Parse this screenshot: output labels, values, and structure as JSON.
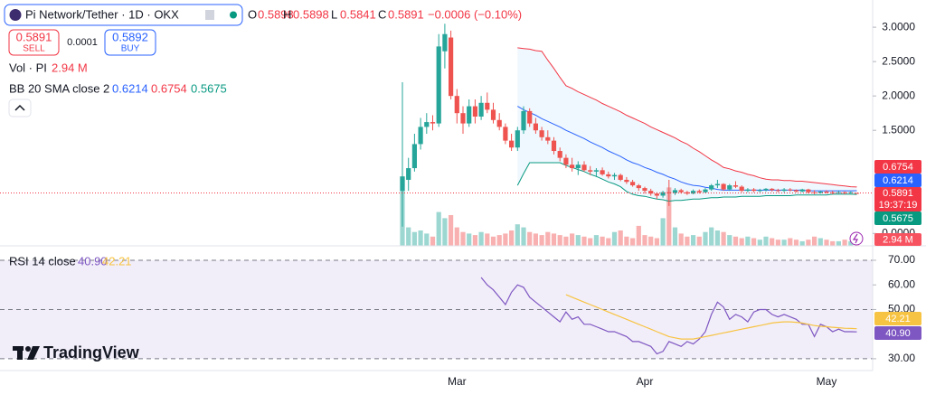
{
  "header": {
    "symbol": "Pi Network/Tether · 1D · OKX",
    "ohlc": [
      {
        "key": "O",
        "value": "0.5898"
      },
      {
        "key": "H",
        "value": "0.5898"
      },
      {
        "key": "L",
        "value": "0.5841"
      },
      {
        "key": "C",
        "value": "0.5891"
      }
    ],
    "change": "−0.0006 (−0.10%)",
    "sell": {
      "price": "0.5891",
      "label": "SELL"
    },
    "spread": "0.0001",
    "buy": {
      "price": "0.5892",
      "label": "BUY"
    },
    "volume_legend": {
      "name": "Vol · PI",
      "value": "2.94 M"
    },
    "bb_legend": {
      "name": "BB 20 SMA close 2",
      "values": [
        "0.6214",
        "0.6754",
        "0.5675"
      ]
    },
    "rsi_legend": {
      "name": "RSI 14 close",
      "values": [
        "40.90",
        "42.21"
      ]
    },
    "axis_labels": {
      "bb_upper": "0.6754",
      "bb_basis": "0.6214",
      "last": "0.5891",
      "countdown": "19:37:19",
      "bb_lower": "0.5675",
      "volume": "2.94 M",
      "rsi_ma": "42.21",
      "rsi": "40.90"
    },
    "brand": "TradingView"
  },
  "chart_data": [
    {
      "type": "candlestick",
      "open": [
        0.62,
        0.78,
        0.95,
        1.3,
        1.55,
        1.62,
        1.6,
        2.65,
        2.85,
        2.0,
        1.75,
        1.6,
        1.85,
        1.7,
        1.9,
        1.8,
        1.65,
        1.55,
        1.35,
        1.25,
        1.5,
        1.78,
        1.6,
        1.5,
        1.4,
        1.35,
        1.2,
        1.1,
        1.0,
        0.95,
        1.0,
        0.92,
        0.9,
        0.92,
        0.86,
        0.83,
        0.85,
        0.78,
        0.75,
        0.7,
        0.66,
        0.62,
        0.58,
        0.55,
        0.6,
        0.59,
        0.63,
        0.6,
        0.58,
        0.62,
        0.6,
        0.64,
        0.7,
        0.72,
        0.64,
        0.7,
        0.68,
        0.62,
        0.64,
        0.62,
        0.63,
        0.65,
        0.63,
        0.62,
        0.64,
        0.63,
        0.61,
        0.64,
        0.6,
        0.59,
        0.61,
        0.6,
        0.59,
        0.6,
        0.59,
        0.5898
      ],
      "high": [
        2.2,
        1.1,
        1.45,
        1.68,
        1.75,
        1.72,
        2.9,
        3.05,
        2.95,
        2.1,
        1.85,
        1.95,
        1.95,
        2.0,
        2.05,
        1.9,
        1.75,
        1.6,
        1.45,
        1.55,
        1.85,
        1.82,
        1.68,
        1.55,
        1.5,
        1.4,
        1.25,
        1.15,
        1.1,
        1.05,
        1.05,
        0.98,
        0.95,
        0.96,
        0.9,
        0.88,
        0.87,
        0.82,
        0.78,
        0.72,
        0.68,
        0.65,
        0.6,
        0.62,
        0.78,
        0.66,
        0.65,
        0.62,
        0.64,
        0.64,
        0.66,
        0.72,
        0.78,
        0.73,
        0.72,
        0.76,
        0.7,
        0.66,
        0.66,
        0.65,
        0.66,
        0.66,
        0.65,
        0.66,
        0.66,
        0.64,
        0.65,
        0.65,
        0.63,
        0.62,
        0.63,
        0.62,
        0.62,
        0.61,
        0.61,
        0.5898
      ],
      "low": [
        0.1,
        0.62,
        0.9,
        1.22,
        1.45,
        1.5,
        1.55,
        2.4,
        1.95,
        1.6,
        1.45,
        1.55,
        1.6,
        1.65,
        1.75,
        1.6,
        1.5,
        1.3,
        1.2,
        1.2,
        1.45,
        1.55,
        1.45,
        1.35,
        1.3,
        1.15,
        1.05,
        0.95,
        0.9,
        0.85,
        0.9,
        0.85,
        0.82,
        0.84,
        0.8,
        0.78,
        0.76,
        0.72,
        0.68,
        0.62,
        0.58,
        0.55,
        0.5,
        0.52,
        0.4,
        0.56,
        0.58,
        0.56,
        0.57,
        0.58,
        0.59,
        0.62,
        0.66,
        0.62,
        0.62,
        0.66,
        0.6,
        0.6,
        0.6,
        0.6,
        0.61,
        0.61,
        0.6,
        0.6,
        0.61,
        0.6,
        0.6,
        0.58,
        0.57,
        0.58,
        0.58,
        0.57,
        0.58,
        0.57,
        0.58,
        0.5841
      ],
      "close": [
        0.83,
        0.95,
        1.3,
        1.55,
        1.62,
        1.6,
        2.72,
        2.9,
        2.0,
        1.75,
        1.6,
        1.85,
        1.7,
        1.9,
        1.8,
        1.65,
        1.55,
        1.35,
        1.25,
        1.5,
        1.78,
        1.6,
        1.5,
        1.4,
        1.35,
        1.2,
        1.1,
        1.0,
        0.95,
        1.0,
        0.92,
        0.9,
        0.92,
        0.86,
        0.83,
        0.85,
        0.78,
        0.75,
        0.7,
        0.66,
        0.62,
        0.58,
        0.55,
        0.6,
        0.59,
        0.63,
        0.6,
        0.58,
        0.62,
        0.6,
        0.64,
        0.7,
        0.72,
        0.64,
        0.7,
        0.68,
        0.62,
        0.64,
        0.62,
        0.63,
        0.65,
        0.63,
        0.62,
        0.64,
        0.63,
        0.61,
        0.64,
        0.6,
        0.59,
        0.61,
        0.6,
        0.59,
        0.6,
        0.59,
        0.6,
        0.5891
      ],
      "up_color": "#26a69a",
      "down_color": "#ef5350",
      "volume": [
        45,
        12,
        9,
        10,
        8,
        6,
        22,
        18,
        20,
        12,
        9,
        8,
        7,
        9,
        8,
        6,
        7,
        8,
        10,
        14,
        12,
        9,
        8,
        7,
        9,
        8,
        7,
        6,
        8,
        7,
        6,
        5,
        7,
        6,
        5,
        9,
        10,
        6,
        5,
        13,
        7,
        6,
        5,
        18,
        38,
        12,
        8,
        6,
        7,
        6,
        9,
        12,
        10,
        9,
        7,
        6,
        5,
        6,
        5,
        4,
        6,
        5,
        4,
        4,
        5,
        4,
        3,
        4,
        6,
        5,
        4,
        3,
        3,
        4,
        3,
        2.94
      ],
      "volume_lim": [
        0,
        157
      ],
      "bb_upper": {
        "color": "#f23645",
        "values": [
          null,
          null,
          null,
          null,
          null,
          null,
          null,
          null,
          null,
          null,
          null,
          null,
          null,
          null,
          null,
          null,
          null,
          null,
          null,
          2.7,
          2.69,
          2.68,
          2.66,
          2.65,
          2.52,
          2.4,
          2.27,
          2.15,
          2.11,
          2.06,
          2.02,
          1.98,
          1.94,
          1.89,
          1.85,
          1.81,
          1.77,
          1.72,
          1.68,
          1.64,
          1.6,
          1.55,
          1.51,
          1.47,
          1.43,
          1.39,
          1.34,
          1.3,
          1.24,
          1.19,
          1.13,
          1.07,
          1.02,
          0.96,
          0.94,
          0.91,
          0.89,
          0.86,
          0.84,
          0.81,
          0.79,
          0.78,
          0.78,
          0.77,
          0.77,
          0.76,
          0.76,
          0.75,
          0.74,
          0.73,
          0.72,
          0.71,
          0.7,
          0.69,
          0.68,
          0.6754
        ]
      },
      "bb_basis": {
        "color": "#2962ff",
        "values": [
          null,
          null,
          null,
          null,
          null,
          null,
          null,
          null,
          null,
          null,
          null,
          null,
          null,
          null,
          null,
          null,
          null,
          null,
          null,
          1.85,
          1.8,
          1.76,
          1.72,
          1.67,
          1.63,
          1.59,
          1.55,
          1.5,
          1.46,
          1.42,
          1.38,
          1.33,
          1.29,
          1.25,
          1.2,
          1.16,
          1.12,
          1.07,
          1.03,
          1.0,
          0.96,
          0.93,
          0.89,
          0.86,
          0.82,
          0.79,
          0.75,
          0.72,
          0.7,
          0.69,
          0.67,
          0.66,
          0.64,
          0.63,
          0.63,
          0.63,
          0.63,
          0.63,
          0.63,
          0.63,
          0.63,
          0.63,
          0.63,
          0.63,
          0.63,
          0.63,
          0.63,
          0.62,
          0.62,
          0.62,
          0.62,
          0.62,
          0.62,
          0.62,
          0.62,
          0.6214
        ]
      },
      "bb_lower": {
        "color": "#089981",
        "values": [
          null,
          null,
          null,
          null,
          null,
          null,
          null,
          null,
          null,
          null,
          null,
          null,
          null,
          null,
          null,
          null,
          null,
          null,
          null,
          0.7,
          0.87,
          1.03,
          1.03,
          1.03,
          1.03,
          1.03,
          1.03,
          0.99,
          0.96,
          0.93,
          0.9,
          0.86,
          0.83,
          0.79,
          0.75,
          0.72,
          0.68,
          0.61,
          0.57,
          0.55,
          0.54,
          0.52,
          0.5,
          0.49,
          0.47,
          0.48,
          0.48,
          0.49,
          0.5,
          0.5,
          0.51,
          0.52,
          0.52,
          0.53,
          0.53,
          0.53,
          0.54,
          0.54,
          0.54,
          0.54,
          0.55,
          0.55,
          0.55,
          0.55,
          0.55,
          0.56,
          0.56,
          0.56,
          0.56,
          0.56,
          0.56,
          0.57,
          0.57,
          0.57,
          0.57,
          0.5675
        ]
      },
      "band_fill": "#2196f3",
      "ylim": [
        -0.18,
        3.33
      ],
      "yticks": [
        {
          "value": 3,
          "label": "3.0000"
        },
        {
          "value": 2.5,
          "label": "2.5000"
        },
        {
          "value": 2,
          "label": "2.0000"
        },
        {
          "value": 1.5,
          "label": "1.5000"
        },
        {
          "value": 0,
          "label": "0.0000"
        }
      ],
      "last_price_line": true
    },
    {
      "type": "line",
      "categories": [
        null,
        null,
        null,
        null,
        null,
        null,
        null,
        null,
        null,
        "Mar",
        null,
        null,
        null,
        null,
        null,
        null,
        null,
        null,
        null,
        null,
        null,
        null,
        null,
        null,
        null,
        null,
        null,
        null,
        null,
        null,
        null,
        null,
        null,
        null,
        null,
        null,
        null,
        null,
        null,
        null,
        "Apr",
        null,
        null,
        null,
        null,
        null,
        null,
        null,
        null,
        null,
        null,
        null,
        null,
        null,
        null,
        null,
        null,
        null,
        null,
        null,
        null,
        null,
        null,
        null,
        null,
        null,
        null,
        null,
        null,
        null,
        "May",
        null,
        null,
        null,
        null,
        null
      ],
      "series": [
        {
          "color": "#7e57c2",
          "values": [
            null,
            null,
            null,
            null,
            null,
            null,
            null,
            null,
            null,
            null,
            null,
            null,
            null,
            63,
            60,
            58,
            55,
            52,
            57,
            60,
            59,
            55,
            53,
            51,
            49,
            47,
            45,
            49,
            46,
            47,
            44,
            44,
            43,
            42,
            41,
            41,
            40,
            39,
            37,
            37,
            36,
            35,
            32,
            33,
            37,
            36,
            35,
            37,
            36,
            38,
            41,
            48,
            53,
            51,
            46,
            48,
            47,
            45,
            49,
            50,
            50,
            48,
            47,
            48,
            47,
            46,
            44,
            44,
            39,
            44,
            43,
            41,
            42,
            41,
            41,
            40.9
          ]
        },
        {
          "color": "#f7c342",
          "values": [
            null,
            null,
            null,
            null,
            null,
            null,
            null,
            null,
            null,
            null,
            null,
            null,
            null,
            null,
            null,
            null,
            null,
            null,
            null,
            null,
            null,
            null,
            null,
            null,
            null,
            null,
            null,
            56,
            55,
            54,
            53,
            52,
            51,
            50,
            49,
            48,
            47,
            46,
            45,
            44,
            43,
            42,
            41,
            40,
            39,
            38.5,
            38,
            38,
            38,
            38.5,
            39,
            39.5,
            40,
            40.5,
            41,
            41.5,
            42,
            42.5,
            43,
            43.5,
            44,
            44.5,
            44.8,
            45,
            45,
            44.8,
            44.5,
            44,
            43.5,
            43.2,
            43,
            42.8,
            42.6,
            42.4,
            42.3,
            42.21
          ]
        }
      ],
      "levels": [
        70,
        50,
        30
      ],
      "band_color": "#7e57c2",
      "ylim": [
        25.2,
        75.5
      ],
      "yticks": [
        {
          "value": 70,
          "label": "70.00"
        },
        {
          "value": 60,
          "label": "60.00"
        },
        {
          "value": 50,
          "label": "50.00"
        },
        {
          "value": 30,
          "label": "30.00"
        }
      ]
    }
  ]
}
